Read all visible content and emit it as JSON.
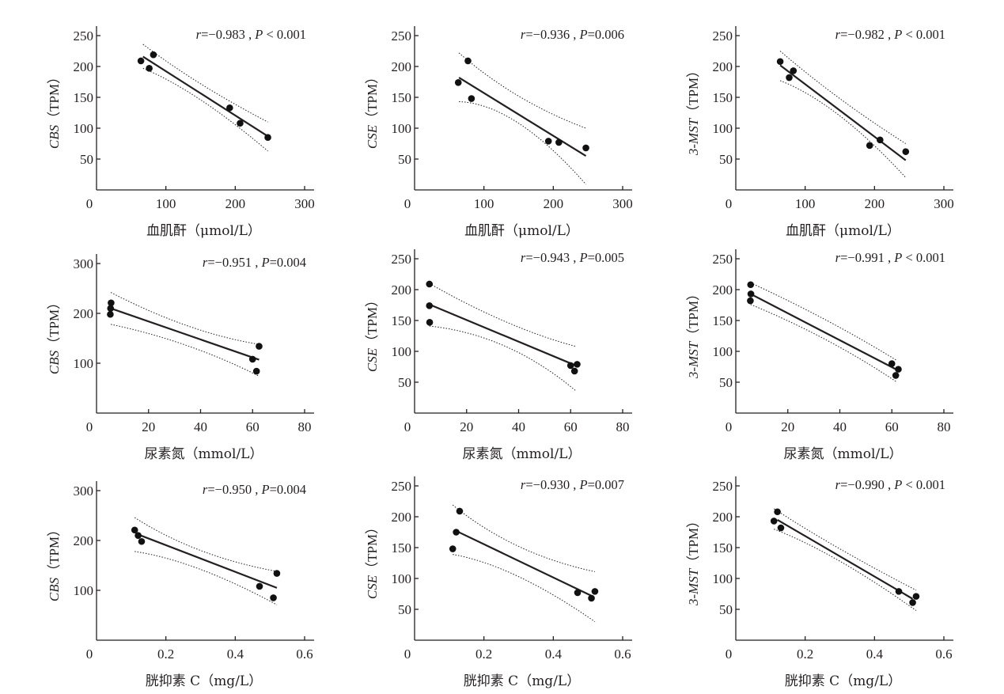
{
  "chart_data": [
    {
      "type": "scatter",
      "panel": "CBS vs serum creatinine",
      "ylabel_gene": "CBS",
      "ylabel_unit": "（TPM）",
      "xlabel": "血肌酐（μmol/L）",
      "annotation": {
        "r": "r=−0.983",
        "sep": " , ",
        "p": "P < 0.001"
      },
      "xlim": [
        0,
        300
      ],
      "ylim": [
        0,
        250
      ],
      "xticks": [
        0,
        100,
        200,
        300
      ],
      "xtick_labels": [
        "0",
        "100",
        "200",
        "300"
      ],
      "yticks": [
        50,
        100,
        150,
        200,
        250
      ],
      "ytick_labels": [
        "50",
        "100",
        "150",
        "200",
        "250"
      ],
      "points": [
        [
          64,
          209
        ],
        [
          82,
          219
        ],
        [
          76,
          197
        ],
        [
          192,
          133
        ],
        [
          207,
          108
        ],
        [
          247,
          85
        ]
      ],
      "fit": {
        "x": [
          67,
          247
        ],
        "y": [
          216,
          87
        ]
      },
      "ci_upper": [
        [
          67,
          236
        ],
        [
          150,
          172
        ],
        [
          247,
          110
        ]
      ],
      "ci_lower": [
        [
          67,
          197
        ],
        [
          150,
          146
        ],
        [
          247,
          63
        ]
      ]
    },
    {
      "type": "scatter",
      "panel": "CSE vs serum creatinine",
      "ylabel_gene": "CSE",
      "ylabel_unit": "（TPM）",
      "xlabel": "血肌酐（μmol/L）",
      "annotation": {
        "r": "r=−0.936",
        "sep": " , ",
        "p": "P=0.006"
      },
      "xlim": [
        0,
        300
      ],
      "ylim": [
        0,
        250
      ],
      "xticks": [
        0,
        100,
        200,
        300
      ],
      "xtick_labels": [
        "0",
        "100",
        "200",
        "300"
      ],
      "yticks": [
        50,
        100,
        150,
        200,
        250
      ],
      "ytick_labels": [
        "50",
        "100",
        "150",
        "200",
        "250"
      ],
      "points": [
        [
          63,
          174
        ],
        [
          77,
          209
        ],
        [
          82,
          148
        ],
        [
          193,
          79
        ],
        [
          208,
          77
        ],
        [
          247,
          68
        ]
      ],
      "fit": {
        "x": [
          64,
          247
        ],
        "y": [
          182,
          55
        ]
      },
      "ci_upper": [
        [
          64,
          222
        ],
        [
          150,
          152
        ],
        [
          247,
          100
        ]
      ],
      "ci_lower": [
        [
          64,
          143
        ],
        [
          150,
          108
        ],
        [
          247,
          9
        ]
      ]
    },
    {
      "type": "scatter",
      "panel": "3-MST vs serum creatinine",
      "ylabel_gene": "3-MST",
      "ylabel_unit": "（TPM）",
      "xlabel": "血肌酐（μmol/L）",
      "annotation": {
        "r": "r=−0.982",
        "sep": " , ",
        "p": "P < 0.001"
      },
      "xlim": [
        0,
        300
      ],
      "ylim": [
        0,
        250
      ],
      "xticks": [
        0,
        100,
        200,
        300
      ],
      "xtick_labels": [
        "0",
        "100",
        "200",
        "300"
      ],
      "yticks": [
        50,
        100,
        150,
        200,
        250
      ],
      "ytick_labels": [
        "50",
        "100",
        "150",
        "200",
        "250"
      ],
      "points": [
        [
          64,
          208
        ],
        [
          77,
          182
        ],
        [
          83,
          193
        ],
        [
          193,
          72
        ],
        [
          208,
          81
        ],
        [
          245,
          62
        ]
      ],
      "fit": {
        "x": [
          64,
          245
        ],
        "y": [
          202,
          48
        ]
      },
      "ci_upper": [
        [
          64,
          225
        ],
        [
          150,
          148
        ],
        [
          245,
          75
        ]
      ],
      "ci_lower": [
        [
          64,
          177
        ],
        [
          150,
          120
        ],
        [
          245,
          20
        ]
      ]
    },
    {
      "type": "scatter",
      "panel": "CBS vs blood urea nitrogen",
      "ylabel_gene": "CBS",
      "ylabel_unit": "（TPM）",
      "xlabel": "尿素氮（mmol/L）",
      "annotation": {
        "r": "r=−0.951",
        "sep": " , ",
        "p": "P=0.004"
      },
      "xlim": [
        0,
        80
      ],
      "ylim": [
        0,
        300
      ],
      "xticks": [
        0,
        20,
        40,
        60,
        80
      ],
      "xtick_labels": [
        "0",
        "20",
        "40",
        "60",
        "80"
      ],
      "yticks": [
        100,
        200,
        300
      ],
      "ytick_labels": [
        "100",
        "200",
        "300"
      ],
      "points": [
        [
          5.6,
          221
        ],
        [
          5.4,
          210
        ],
        [
          5.3,
          198
        ],
        [
          60,
          108
        ],
        [
          61.5,
          84
        ],
        [
          62.5,
          134
        ]
      ],
      "fit": {
        "x": [
          5.5,
          62.5
        ],
        "y": [
          210,
          107
        ]
      },
      "ci_upper": [
        [
          5.5,
          242
        ],
        [
          35,
          175
        ],
        [
          62.5,
          138
        ]
      ],
      "ci_lower": [
        [
          5.5,
          178
        ],
        [
          35,
          135
        ],
        [
          62.5,
          74
        ]
      ]
    },
    {
      "type": "scatter",
      "panel": "CSE vs blood urea nitrogen",
      "ylabel_gene": "CSE",
      "ylabel_unit": "（TPM）",
      "xlabel": "尿素氮（mmol/L）",
      "annotation": {
        "r": "r=−0.943",
        "sep": " , ",
        "p": "P=0.005"
      },
      "xlim": [
        0,
        80
      ],
      "ylim": [
        0,
        250
      ],
      "xticks": [
        0,
        20,
        40,
        60,
        80
      ],
      "xtick_labels": [
        "0",
        "20",
        "40",
        "60",
        "80"
      ],
      "yticks": [
        50,
        100,
        150,
        200,
        250
      ],
      "ytick_labels": [
        "50",
        "100",
        "150",
        "200",
        "250"
      ],
      "points": [
        [
          5.7,
          209
        ],
        [
          5.7,
          174
        ],
        [
          5.8,
          147
        ],
        [
          60,
          77
        ],
        [
          61.5,
          68
        ],
        [
          62.5,
          79
        ]
      ],
      "fit": {
        "x": [
          5.7,
          62
        ],
        "y": [
          176,
          77
        ]
      },
      "ci_upper": [
        [
          5.7,
          210
        ],
        [
          35,
          148
        ],
        [
          62,
          108
        ]
      ],
      "ci_lower": [
        [
          5.7,
          141
        ],
        [
          35,
          108
        ],
        [
          62,
          36
        ]
      ]
    },
    {
      "type": "scatter",
      "panel": "3-MST vs blood urea nitrogen",
      "ylabel_gene": "3-MST",
      "ylabel_unit": "（TPM）",
      "xlabel": "尿素氮（mmol/L）",
      "annotation": {
        "r": "r=−0.991",
        "sep": " , ",
        "p": "P < 0.001"
      },
      "xlim": [
        0,
        80
      ],
      "ylim": [
        0,
        250
      ],
      "xticks": [
        0,
        20,
        40,
        60,
        80
      ],
      "xtick_labels": [
        "0",
        "20",
        "40",
        "60",
        "80"
      ],
      "yticks": [
        50,
        100,
        150,
        200,
        250
      ],
      "ytick_labels": [
        "50",
        "100",
        "150",
        "200",
        "250"
      ],
      "points": [
        [
          5.7,
          208
        ],
        [
          5.8,
          193
        ],
        [
          5.6,
          182
        ],
        [
          60,
          80
        ],
        [
          62.5,
          71
        ],
        [
          61.5,
          61
        ]
      ],
      "fit": {
        "x": [
          5.7,
          62
        ],
        "y": [
          193,
          70
        ]
      },
      "ci_upper": [
        [
          5.7,
          211
        ],
        [
          35,
          150
        ],
        [
          62,
          85
        ]
      ],
      "ci_lower": [
        [
          5.7,
          176
        ],
        [
          35,
          118
        ],
        [
          62,
          50
        ]
      ]
    },
    {
      "type": "scatter",
      "panel": "CBS vs cystatin C",
      "ylabel_gene": "CBS",
      "ylabel_unit": "（TPM）",
      "xlabel": "胱抑素 C（mg/L）",
      "annotation": {
        "r": "r=−0.950",
        "sep": " , ",
        "p": "P=0.004"
      },
      "xlim": [
        0,
        0.6
      ],
      "ylim": [
        0,
        300
      ],
      "xticks": [
        0,
        0.2,
        0.4,
        0.6
      ],
      "xtick_labels": [
        "0",
        "0.2",
        "0.4",
        "0.6"
      ],
      "yticks": [
        100,
        200,
        300
      ],
      "ytick_labels": [
        "100",
        "200",
        "300"
      ],
      "points": [
        [
          0.11,
          221
        ],
        [
          0.12,
          210
        ],
        [
          0.13,
          198
        ],
        [
          0.47,
          108
        ],
        [
          0.51,
          85
        ],
        [
          0.52,
          134
        ]
      ],
      "fit": {
        "x": [
          0.12,
          0.52
        ],
        "y": [
          212,
          105
        ]
      },
      "ci_upper": [
        [
          0.11,
          246
        ],
        [
          0.3,
          180
        ],
        [
          0.52,
          138
        ]
      ],
      "ci_lower": [
        [
          0.11,
          178
        ],
        [
          0.3,
          142
        ],
        [
          0.52,
          71
        ]
      ]
    },
    {
      "type": "scatter",
      "panel": "CSE vs cystatin C",
      "ylabel_gene": "CSE",
      "ylabel_unit": "（TPM）",
      "xlabel": "胱抑素 C（mg/L）",
      "annotation": {
        "r": "r=−0.930",
        "sep": " , ",
        "p": "P=0.007"
      },
      "xlim": [
        0,
        0.6
      ],
      "ylim": [
        0,
        250
      ],
      "xticks": [
        0,
        0.2,
        0.4,
        0.6
      ],
      "xtick_labels": [
        "0",
        "0.2",
        "0.4",
        "0.6"
      ],
      "yticks": [
        50,
        100,
        150,
        200,
        250
      ],
      "ytick_labels": [
        "50",
        "100",
        "150",
        "200",
        "250"
      ],
      "points": [
        [
          0.11,
          148
        ],
        [
          0.12,
          175
        ],
        [
          0.13,
          209
        ],
        [
          0.47,
          77
        ],
        [
          0.51,
          68
        ],
        [
          0.52,
          79
        ]
      ],
      "fit": {
        "x": [
          0.12,
          0.51
        ],
        "y": [
          177,
          72
        ]
      },
      "ci_upper": [
        [
          0.11,
          219
        ],
        [
          0.3,
          152
        ],
        [
          0.52,
          111
        ]
      ],
      "ci_lower": [
        [
          0.11,
          139
        ],
        [
          0.3,
          103
        ],
        [
          0.52,
          30
        ]
      ]
    },
    {
      "type": "scatter",
      "panel": "3-MST vs cystatin C",
      "ylabel_gene": "3-MST",
      "ylabel_unit": "（TPM）",
      "xlabel": "胱抑素 C（mg/L）",
      "annotation": {
        "r": "r=−0.990",
        "sep": " , ",
        "p": "P < 0.001"
      },
      "xlim": [
        0,
        0.6
      ],
      "ylim": [
        0,
        250
      ],
      "xticks": [
        0,
        0.2,
        0.4,
        0.6
      ],
      "xtick_labels": [
        "0",
        "0.2",
        "0.4",
        "0.6"
      ],
      "yticks": [
        50,
        100,
        150,
        200,
        250
      ],
      "ytick_labels": [
        "50",
        "100",
        "150",
        "200",
        "250"
      ],
      "points": [
        [
          0.12,
          208
        ],
        [
          0.11,
          193
        ],
        [
          0.13,
          182
        ],
        [
          0.47,
          79
        ],
        [
          0.51,
          61
        ],
        [
          0.52,
          71
        ]
      ],
      "fit": {
        "x": [
          0.12,
          0.51
        ],
        "y": [
          195,
          67
        ]
      },
      "ci_upper": [
        [
          0.11,
          213
        ],
        [
          0.3,
          148
        ],
        [
          0.52,
          81
        ]
      ],
      "ci_lower": [
        [
          0.11,
          180
        ],
        [
          0.3,
          128
        ],
        [
          0.52,
          48
        ]
      ]
    }
  ],
  "colors": {
    "ink": "#231f20",
    "points": "#111111"
  }
}
